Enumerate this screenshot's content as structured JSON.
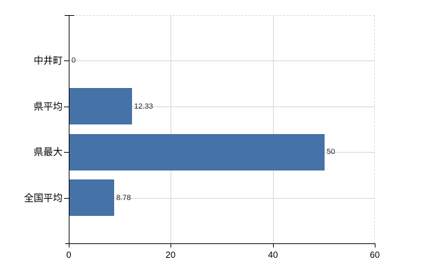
{
  "chart_data": {
    "type": "bar",
    "orientation": "horizontal",
    "title": "",
    "categories": [
      "中井町",
      "県平均",
      "県最大",
      "全国平均"
    ],
    "values": [
      0,
      12.33,
      50,
      8.78
    ],
    "value_labels": [
      "0",
      "12.33",
      "50",
      "8.78"
    ],
    "xticks": [
      0,
      20,
      40,
      60
    ],
    "xtick_labels": [
      "0",
      "20",
      "40",
      "60"
    ],
    "xlim": [
      0,
      60
    ],
    "grid": true,
    "legend": "none",
    "bar_color": "#4572a7",
    "gridline_color": "#d6d6d6",
    "plot_border_color": "#d9d9d9",
    "axis_color": "#000000",
    "value_label_color": "#222222",
    "text_color": "#000000",
    "background": "#ffffff"
  }
}
